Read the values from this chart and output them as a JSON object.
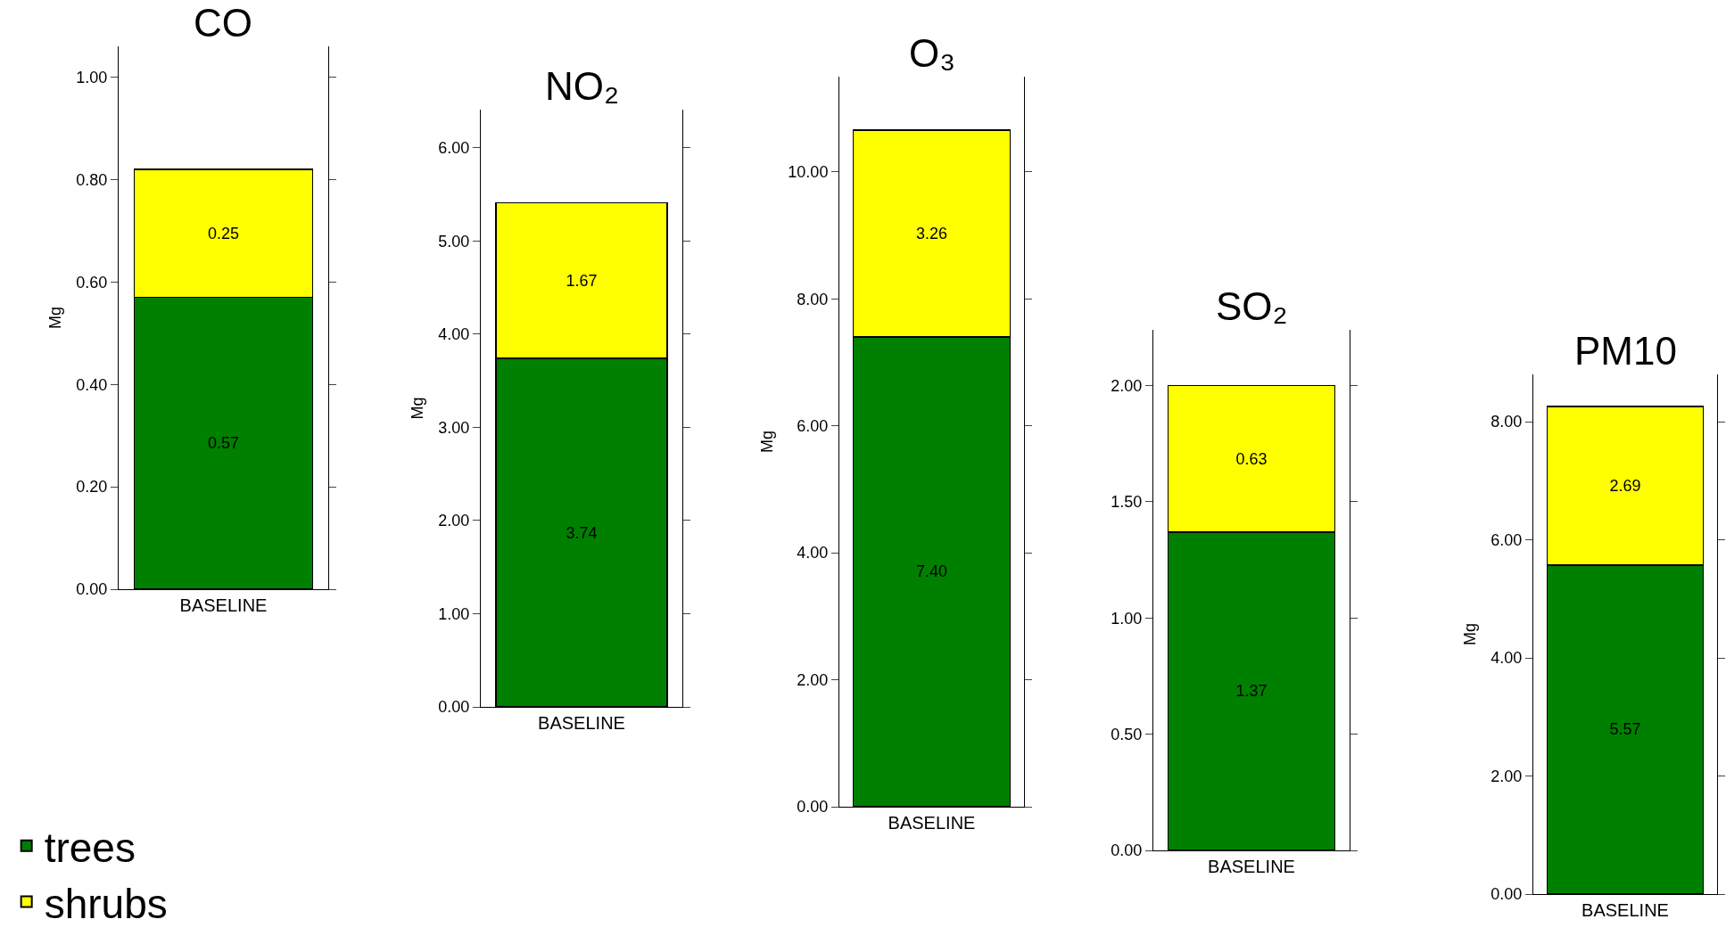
{
  "chart_data": [
    {
      "type": "bar",
      "stacked": true,
      "title": "CO",
      "ylabel": "Mg",
      "categories": [
        "BASELINE"
      ],
      "legend": "bottom left",
      "ylim": [
        0,
        1.06
      ],
      "yticks": [
        {
          "value": 0,
          "label": "0.00"
        },
        {
          "value": 0.2,
          "label": "0.20"
        },
        {
          "value": 0.4,
          "label": "0.40"
        },
        {
          "value": 0.6,
          "label": "0.60"
        },
        {
          "value": 0.8,
          "label": "0.80"
        },
        {
          "value": 1.0,
          "label": "1.00"
        }
      ],
      "series": [
        {
          "name": "trees",
          "color": "#008000",
          "values": [
            0.57
          ],
          "value_labels": [
            "0.57"
          ]
        },
        {
          "name": "shrubs",
          "color": "#ffff00",
          "values": [
            0.25
          ],
          "value_labels": [
            "0.25"
          ]
        }
      ]
    },
    {
      "type": "bar",
      "stacked": true,
      "title": "NO₂",
      "ylabel": "Mg",
      "categories": [
        "BASELINE"
      ],
      "ylim": [
        0,
        6.41
      ],
      "yticks": [
        {
          "value": 0,
          "label": "0.00"
        },
        {
          "value": 1,
          "label": "1.00"
        },
        {
          "value": 2,
          "label": "2.00"
        },
        {
          "value": 3,
          "label": "3.00"
        },
        {
          "value": 4,
          "label": "4.00"
        },
        {
          "value": 5,
          "label": "5.00"
        },
        {
          "value": 6,
          "label": "6.00"
        }
      ],
      "series": [
        {
          "color": "#008000",
          "values": [
            3.74
          ],
          "value_labels": [
            "3.74"
          ]
        },
        {
          "color": "#ffff00",
          "values": [
            1.67
          ],
          "value_labels": [
            "1.67"
          ]
        }
      ]
    },
    {
      "type": "bar",
      "stacked": true,
      "title": "O₃",
      "ylabel": "Mg",
      "categories": [
        "BASELINE"
      ],
      "ylim": [
        0,
        11.5
      ],
      "yticks": [
        {
          "value": 0,
          "label": "0.00"
        },
        {
          "value": 2,
          "label": "2.00"
        },
        {
          "value": 4,
          "label": "4.00"
        },
        {
          "value": 6,
          "label": "6.00"
        },
        {
          "value": 8,
          "label": "8.00"
        },
        {
          "value": 10,
          "label": "10.00"
        }
      ],
      "series": [
        {
          "color": "#008000",
          "values": [
            7.4
          ],
          "value_labels": [
            "7.40"
          ]
        },
        {
          "color": "#ffff00",
          "values": [
            3.26
          ],
          "value_labels": [
            "3.26"
          ]
        }
      ]
    },
    {
      "type": "bar",
      "stacked": true,
      "title": "SO₂",
      "categories": [
        "BASELINE"
      ],
      "ylim": [
        0,
        2.24
      ],
      "yticks": [
        {
          "value": 0,
          "label": "0.00"
        },
        {
          "value": 0.5,
          "label": "0.50"
        },
        {
          "value": 1.0,
          "label": "1.00"
        },
        {
          "value": 1.5,
          "label": "1.50"
        },
        {
          "value": 2.0,
          "label": "2.00"
        }
      ],
      "series": [
        {
          "color": "#008000",
          "values": [
            1.37
          ],
          "value_labels": [
            "1.37"
          ]
        },
        {
          "color": "#ffff00",
          "values": [
            0.63
          ],
          "value_labels": [
            "0.63"
          ]
        }
      ]
    },
    {
      "type": "bar",
      "stacked": true,
      "title": "PM10",
      "ylabel": "Mg",
      "categories": [
        "BASELINE"
      ],
      "ylim": [
        0,
        8.8
      ],
      "yticks": [
        {
          "value": 0,
          "label": "0.00"
        },
        {
          "value": 2,
          "label": "2.00"
        },
        {
          "value": 4,
          "label": "4.00"
        },
        {
          "value": 6,
          "label": "6.00"
        },
        {
          "value": 8,
          "label": "8.00"
        }
      ],
      "series": [
        {
          "color": "#008000",
          "values": [
            5.57
          ],
          "value_labels": [
            "5.57"
          ]
        },
        {
          "color": "#ffff00",
          "values": [
            2.69
          ],
          "value_labels": [
            "2.69"
          ]
        }
      ]
    }
  ]
}
